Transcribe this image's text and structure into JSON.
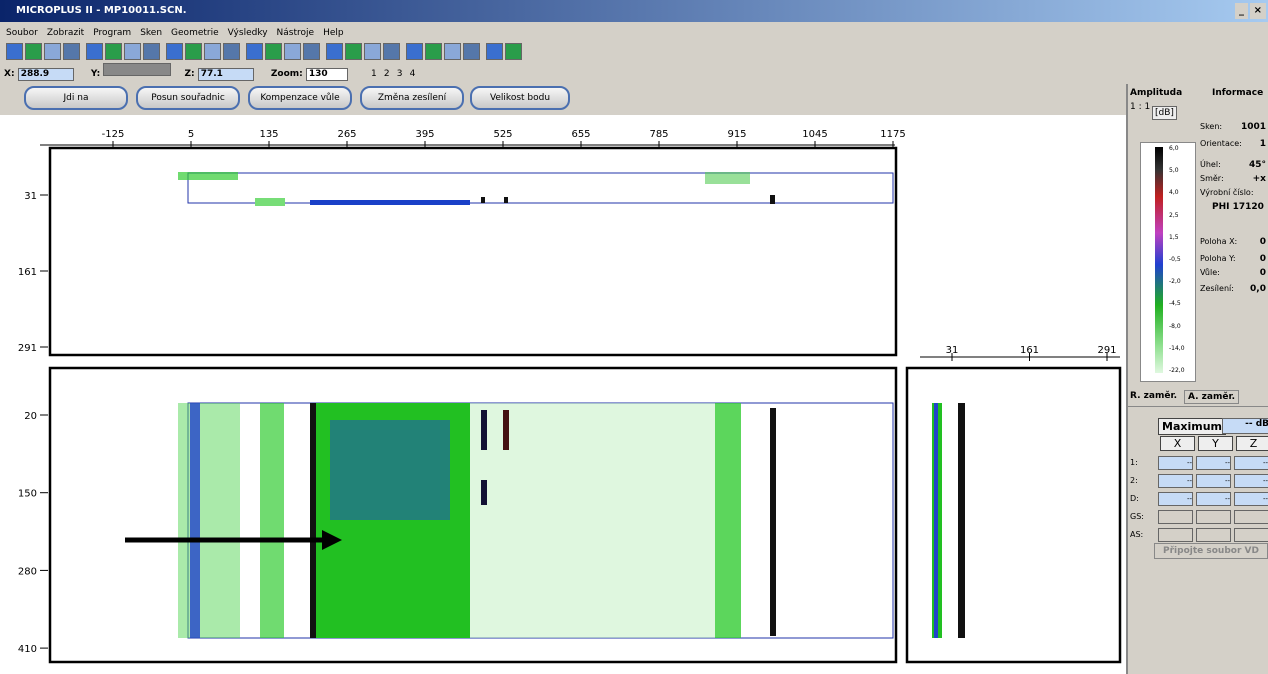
{
  "window": {
    "title": "MICROPLUS II - MP10011.SCN.",
    "controls": [
      "_",
      "×"
    ]
  },
  "menu": [
    "Soubor",
    "Zobrazit",
    "Program",
    "Sken",
    "Geometrie",
    "Výsledky",
    "Nástroje",
    "Help"
  ],
  "coords": {
    "x_label": "X:",
    "x_value": "288.9",
    "y_label": "Y:",
    "z_label": "Z:",
    "z_value": "77.1",
    "zoom_label": "Zoom:",
    "zoom_value": "130",
    "tabs": [
      "1",
      "2",
      "3",
      "4"
    ]
  },
  "buttons": [
    "Jdi na",
    "Posun souřadnic",
    "Kompenzace vůle",
    "Změna zesílení",
    "Velikost bodu"
  ],
  "rulers": {
    "top": [
      "-125",
      "5",
      "135",
      "265",
      "395",
      "525",
      "655",
      "785",
      "915",
      "1045",
      "1175"
    ],
    "upper_left": [
      "31",
      "161",
      "291"
    ],
    "lower_left": [
      "20",
      "150",
      "280",
      "410"
    ],
    "side_top": [
      "31",
      "161",
      "291"
    ]
  },
  "panel": {
    "amplitude": "Amplituda",
    "info": "Informace",
    "ratio": "1 : 1",
    "db": "[dB]",
    "scale": [
      "6,0",
      "5,0",
      "4,0",
      "2,5",
      "1,5",
      "-0,5",
      "-2,0",
      "-4,5",
      "-8,0",
      "-14,0",
      "-22,0"
    ],
    "fields": [
      {
        "label": "Sken:",
        "value": "1001"
      },
      {
        "label": "Orientace:",
        "value": "1"
      },
      {
        "label": "Úhel:",
        "value": "45°"
      },
      {
        "label": "Směr:",
        "value": "+x"
      },
      {
        "label": "Výrobní číslo:",
        "value": "PHI 17120"
      },
      {
        "label": "Poloha X:",
        "value": "0"
      },
      {
        "label": "Poloha Y:",
        "value": "0"
      },
      {
        "label": "Vůle:",
        "value": "0"
      },
      {
        "label": "Zesílení:",
        "value": "0,0"
      }
    ],
    "tabs": [
      "R. zaměr.",
      "A. zaměr."
    ],
    "maximum": "Maximum",
    "max_value": "-- dB",
    "columns": [
      "X",
      "Y",
      "Z"
    ],
    "rows": [
      {
        "label": "1:",
        "cells": [
          "--",
          "--",
          "--"
        ]
      },
      {
        "label": "2:",
        "cells": [
          "--",
          "--",
          "--"
        ]
      },
      {
        "label": "D:",
        "cells": [
          "--",
          "--",
          "--"
        ]
      },
      {
        "label": "GS:"
      },
      {
        "label": "AS:"
      }
    ],
    "attach": "Připojte soubor VD"
  }
}
